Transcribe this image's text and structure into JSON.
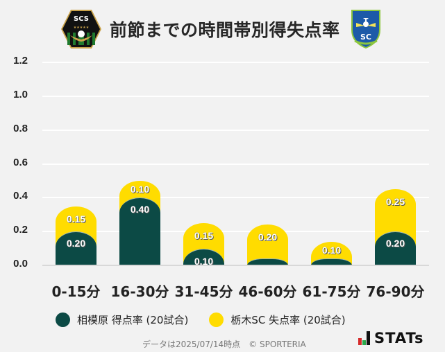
{
  "header": {
    "title": "前節までの時間帯別得失点率",
    "left_logo": "SCS",
    "right_logo": "TSC"
  },
  "colors": {
    "home": "#0c4a45",
    "away": "#ffdc00",
    "background": "#f2f2f2"
  },
  "chart_data": {
    "type": "bar",
    "stacked": true,
    "title": "前節までの時間帯別得失点率",
    "xlabel": "",
    "ylabel": "",
    "ylim": [
      0,
      1.2
    ],
    "yticks": [
      "1.2",
      "1.0",
      "0.8",
      "0.6",
      "0.4",
      "0.2",
      "0.0"
    ],
    "grid": true,
    "legend_position": "bottom",
    "categories": [
      "0-15分",
      "16-30分",
      "31-45分",
      "46-60分",
      "61-75分",
      "76-90分"
    ],
    "series": [
      {
        "name": "相模原 得点率 (20試合)",
        "color": "#0c4a45",
        "values": [
          0.2,
          0.4,
          0.1,
          0.0,
          0.0,
          0.2
        ],
        "labels": [
          "0.20",
          "0.40",
          "0.10",
          "",
          "",
          "0.20"
        ]
      },
      {
        "name": "栃木SC 失点率 (20試合)",
        "color": "#ffdc00",
        "values": [
          0.15,
          0.1,
          0.15,
          0.2,
          0.1,
          0.25
        ],
        "labels": [
          "0.15",
          "0.10",
          "0.15",
          "0.20",
          "0.10",
          "0.25"
        ]
      }
    ]
  },
  "legend": [
    {
      "label": "相模原 得点率 (20試合)",
      "color": "#0c4a45"
    },
    {
      "label": "栃木SC 失点率 (20試合)",
      "color": "#ffdc00"
    }
  ],
  "footer": {
    "note": "データは2025/07/14時点　© SPORTERIA",
    "brand": "STATs"
  }
}
